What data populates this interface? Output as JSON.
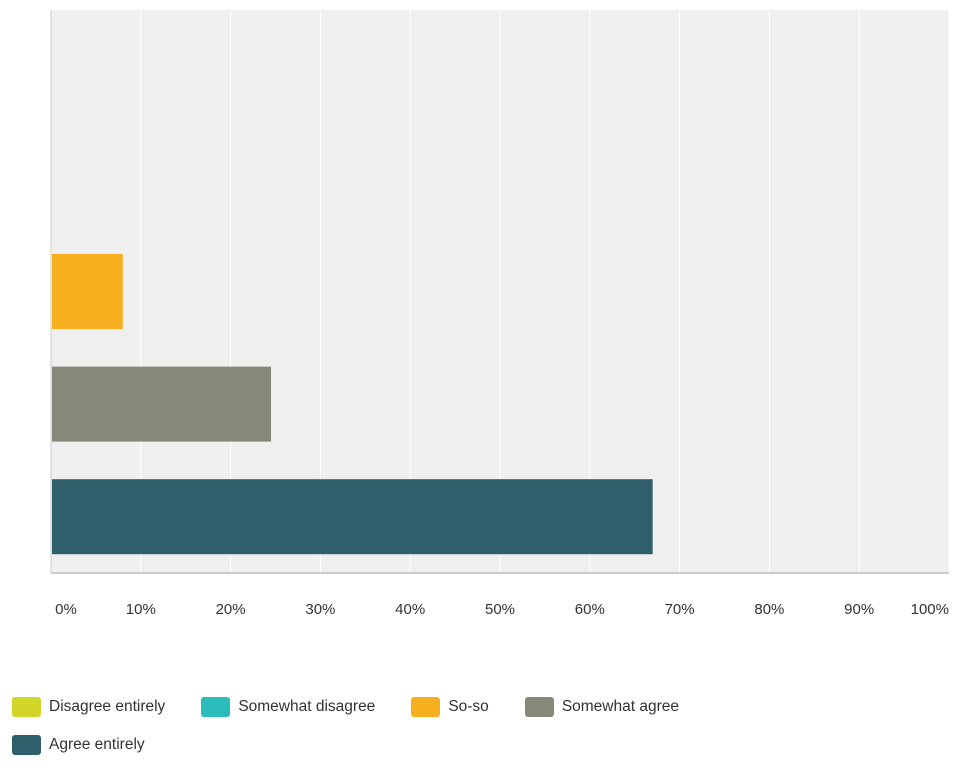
{
  "chart_data": {
    "type": "bar",
    "orientation": "horizontal",
    "title": "",
    "xlabel": "",
    "ylabel": "",
    "xlim": [
      0,
      100
    ],
    "x_ticks": [
      "0%",
      "10%",
      "20%",
      "30%",
      "40%",
      "50%",
      "60%",
      "70%",
      "80%",
      "90%",
      "100%"
    ],
    "grid": true,
    "legend_position": "bottom",
    "series": [
      {
        "name": "Disagree entirely",
        "color": "#d2d629",
        "value": 0
      },
      {
        "name": "Somewhat disagree",
        "color": "#2bbcbc",
        "value": 0
      },
      {
        "name": "So-so",
        "color": "#f6b01f",
        "value": 8
      },
      {
        "name": "Somewhat agree",
        "color": "#86887a",
        "value": 24.5
      },
      {
        "name": "Agree entirely",
        "color": "#2f5f6b",
        "value": 67
      }
    ]
  },
  "colors": {
    "plot_background": "#efefef",
    "gridline": "#ffffff",
    "axis": "#cccccc"
  }
}
